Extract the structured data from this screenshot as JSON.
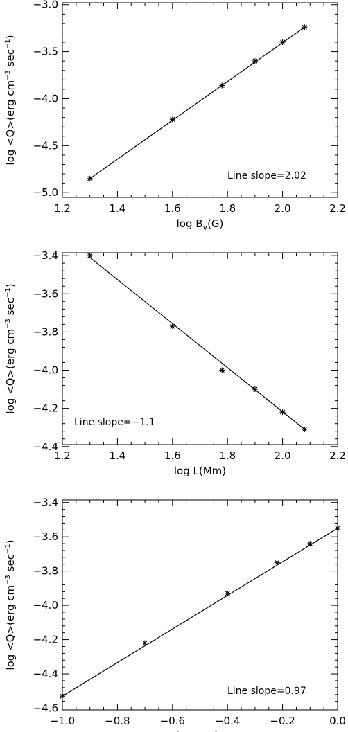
{
  "chart_data": [
    {
      "type": "scatter",
      "x": [
        1.3,
        1.6,
        1.78,
        1.9,
        2.0,
        2.08
      ],
      "y": [
        -4.85,
        -4.22,
        -3.86,
        -3.6,
        -3.4,
        -3.24
      ],
      "fit_line": {
        "x": [
          1.3,
          2.08
        ],
        "y": [
          -4.85,
          -3.24
        ]
      },
      "xlim": [
        1.2,
        2.2
      ],
      "ylim": [
        -5.05,
        -2.98
      ],
      "xticks": [
        "1.2",
        "1.4",
        "1.6",
        "1.8",
        "2.0",
        "2.2"
      ],
      "xtick_values": [
        1.2,
        1.4,
        1.6,
        1.8,
        2.0,
        2.2
      ],
      "yticks": [
        "−5.0",
        "−4.5",
        "−4.0",
        "−3.5",
        "−3.0"
      ],
      "ytick_values": [
        -5.0,
        -4.5,
        -4.0,
        -3.5,
        -3.0
      ],
      "xlabel_main": "log B",
      "xlabel_sub": "v",
      "xlabel_tail": "(G)",
      "ylabel": "log <Q>(erg cm",
      "ylabel_sup1": "−3",
      "ylabel_mid": " sec",
      "ylabel_sup2": "−1",
      "ylabel_end": ")",
      "annotation": "Line slope=2.02",
      "annotation_position": "bottom-right",
      "grid": false
    },
    {
      "type": "scatter",
      "x": [
        1.3,
        1.6,
        1.78,
        1.9,
        2.0,
        2.08
      ],
      "y": [
        -3.4,
        -3.77,
        -4.0,
        -4.1,
        -4.22,
        -4.31
      ],
      "fit_line": {
        "x": [
          1.3,
          2.08
        ],
        "y": [
          -3.41,
          -4.31
        ]
      },
      "xlim": [
        1.2,
        2.2
      ],
      "ylim": [
        -4.39,
        -3.385
      ],
      "xticks": [
        "1.2",
        "1.4",
        "1.6",
        "1.8",
        "2.0",
        "2.2"
      ],
      "xtick_values": [
        1.2,
        1.4,
        1.6,
        1.8,
        2.0,
        2.2
      ],
      "yticks": [
        "−4.4",
        "−4.2",
        "−4.0",
        "−3.8",
        "−3.6",
        "−3.4"
      ],
      "ytick_values": [
        -4.4,
        -4.2,
        -4.0,
        -3.8,
        -3.6,
        -3.4
      ],
      "xlabel_main": "log L(Mm)",
      "xlabel_sub": "",
      "xlabel_tail": "",
      "ylabel": "log <Q>(erg cm",
      "ylabel_sup1": "−3",
      "ylabel_mid": " sec",
      "ylabel_sup2": "−1",
      "ylabel_end": ")",
      "annotation": "Line slope=−1.1",
      "annotation_position": "bottom-left",
      "grid": false
    },
    {
      "type": "scatter",
      "x": [
        -1.0,
        -0.7,
        -0.4,
        -0.22,
        -0.1,
        0.0
      ],
      "y": [
        -4.53,
        -4.22,
        -3.93,
        -3.75,
        -3.64,
        -3.55
      ],
      "fit_line": {
        "x": [
          -1.0,
          0.0
        ],
        "y": [
          -4.53,
          -3.55
        ]
      },
      "xlim": [
        -1.0,
        0.0
      ],
      "ylim": [
        -4.61,
        -3.385
      ],
      "xticks": [
        "−1.0",
        "−0.8",
        "−0.6",
        "−0.4",
        "−0.2",
        "0.0"
      ],
      "xtick_values": [
        -1.0,
        -0.8,
        -0.6,
        -0.4,
        -0.2,
        0.0
      ],
      "yticks": [
        "−4.6",
        "−4.4",
        "−4.2",
        "−4.0",
        "−3.8",
        "−3.6",
        "−3.4"
      ],
      "ytick_values": [
        -4.6,
        -4.4,
        -4.2,
        -4.0,
        -3.8,
        -3.6,
        -3.4
      ],
      "xlabel_main": "log tanθ",
      "xlabel_sub": "c",
      "xlabel_tail": "",
      "ylabel": "log <Q>(erg cm",
      "ylabel_sup1": "−3",
      "ylabel_mid": " sec",
      "ylabel_sup2": "−1",
      "ylabel_end": ")",
      "annotation": "Line slope=0.97",
      "annotation_position": "bottom-right",
      "grid": false
    }
  ]
}
